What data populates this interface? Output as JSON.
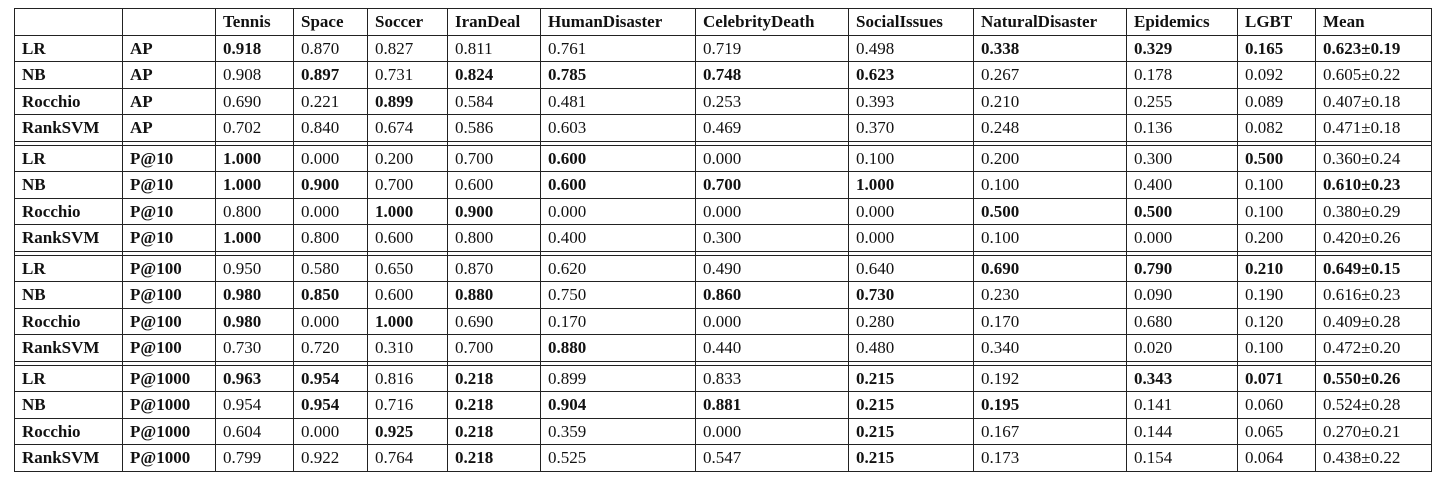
{
  "table": {
    "columns": [
      "Tennis",
      "Space",
      "Soccer",
      "IranDeal",
      "HumanDisaster",
      "CelebrityDeath",
      "SocialIssues",
      "NaturalDisaster",
      "Epidemics",
      "LGBT",
      "Mean"
    ],
    "groups": [
      {
        "metric": "AP",
        "rows": [
          {
            "method": "LR",
            "values": [
              "0.918",
              "0.870",
              "0.827",
              "0.811",
              "0.761",
              "0.719",
              "0.498",
              "0.338",
              "0.329",
              "0.165",
              "0.623±0.19"
            ],
            "bold": [
              0,
              7,
              8,
              9,
              10
            ]
          },
          {
            "method": "NB",
            "values": [
              "0.908",
              "0.897",
              "0.731",
              "0.824",
              "0.785",
              "0.748",
              "0.623",
              "0.267",
              "0.178",
              "0.092",
              "0.605±0.22"
            ],
            "bold": [
              1,
              3,
              4,
              5,
              6
            ]
          },
          {
            "method": "Rocchio",
            "values": [
              "0.690",
              "0.221",
              "0.899",
              "0.584",
              "0.481",
              "0.253",
              "0.393",
              "0.210",
              "0.255",
              "0.089",
              "0.407±0.18"
            ],
            "bold": [
              2
            ]
          },
          {
            "method": "RankSVM",
            "values": [
              "0.702",
              "0.840",
              "0.674",
              "0.586",
              "0.603",
              "0.469",
              "0.370",
              "0.248",
              "0.136",
              "0.082",
              "0.471±0.18"
            ],
            "bold": []
          }
        ]
      },
      {
        "metric": "P@10",
        "rows": [
          {
            "method": "LR",
            "values": [
              "1.000",
              "0.000",
              "0.200",
              "0.700",
              "0.600",
              "0.000",
              "0.100",
              "0.200",
              "0.300",
              "0.500",
              "0.360±0.24"
            ],
            "bold": [
              0,
              4,
              9
            ]
          },
          {
            "method": "NB",
            "values": [
              "1.000",
              "0.900",
              "0.700",
              "0.600",
              "0.600",
              "0.700",
              "1.000",
              "0.100",
              "0.400",
              "0.100",
              "0.610±0.23"
            ],
            "bold": [
              0,
              1,
              4,
              5,
              6,
              10
            ]
          },
          {
            "method": "Rocchio",
            "values": [
              "0.800",
              "0.000",
              "1.000",
              "0.900",
              "0.000",
              "0.000",
              "0.000",
              "0.500",
              "0.500",
              "0.100",
              "0.380±0.29"
            ],
            "bold": [
              2,
              3,
              7,
              8
            ]
          },
          {
            "method": "RankSVM",
            "values": [
              "1.000",
              "0.800",
              "0.600",
              "0.800",
              "0.400",
              "0.300",
              "0.000",
              "0.100",
              "0.000",
              "0.200",
              "0.420±0.26"
            ],
            "bold": [
              0
            ]
          }
        ]
      },
      {
        "metric": "P@100",
        "rows": [
          {
            "method": "LR",
            "values": [
              "0.950",
              "0.580",
              "0.650",
              "0.870",
              "0.620",
              "0.490",
              "0.640",
              "0.690",
              "0.790",
              "0.210",
              "0.649±0.15"
            ],
            "bold": [
              7,
              8,
              9,
              10
            ]
          },
          {
            "method": "NB",
            "values": [
              "0.980",
              "0.850",
              "0.600",
              "0.880",
              "0.750",
              "0.860",
              "0.730",
              "0.230",
              "0.090",
              "0.190",
              "0.616±0.23"
            ],
            "bold": [
              0,
              1,
              3,
              5,
              6
            ]
          },
          {
            "method": "Rocchio",
            "values": [
              "0.980",
              "0.000",
              "1.000",
              "0.690",
              "0.170",
              "0.000",
              "0.280",
              "0.170",
              "0.680",
              "0.120",
              "0.409±0.28"
            ],
            "bold": [
              0,
              2
            ]
          },
          {
            "method": "RankSVM",
            "values": [
              "0.730",
              "0.720",
              "0.310",
              "0.700",
              "0.880",
              "0.440",
              "0.480",
              "0.340",
              "0.020",
              "0.100",
              "0.472±0.20"
            ],
            "bold": [
              4
            ]
          }
        ]
      },
      {
        "metric": "P@1000",
        "rows": [
          {
            "method": "LR",
            "values": [
              "0.963",
              "0.954",
              "0.816",
              "0.218",
              "0.899",
              "0.833",
              "0.215",
              "0.192",
              "0.343",
              "0.071",
              "0.550±0.26"
            ],
            "bold": [
              0,
              1,
              3,
              6,
              8,
              9,
              10
            ]
          },
          {
            "method": "NB",
            "values": [
              "0.954",
              "0.954",
              "0.716",
              "0.218",
              "0.904",
              "0.881",
              "0.215",
              "0.195",
              "0.141",
              "0.060",
              "0.524±0.28"
            ],
            "bold": [
              1,
              3,
              4,
              5,
              6,
              7
            ]
          },
          {
            "method": "Rocchio",
            "values": [
              "0.604",
              "0.000",
              "0.925",
              "0.218",
              "0.359",
              "0.000",
              "0.215",
              "0.167",
              "0.144",
              "0.065",
              "0.270±0.21"
            ],
            "bold": [
              2,
              3,
              6
            ]
          },
          {
            "method": "RankSVM",
            "values": [
              "0.799",
              "0.922",
              "0.764",
              "0.218",
              "0.525",
              "0.547",
              "0.215",
              "0.173",
              "0.154",
              "0.064",
              "0.438±0.22"
            ],
            "bold": [
              3,
              6
            ]
          }
        ]
      }
    ]
  }
}
